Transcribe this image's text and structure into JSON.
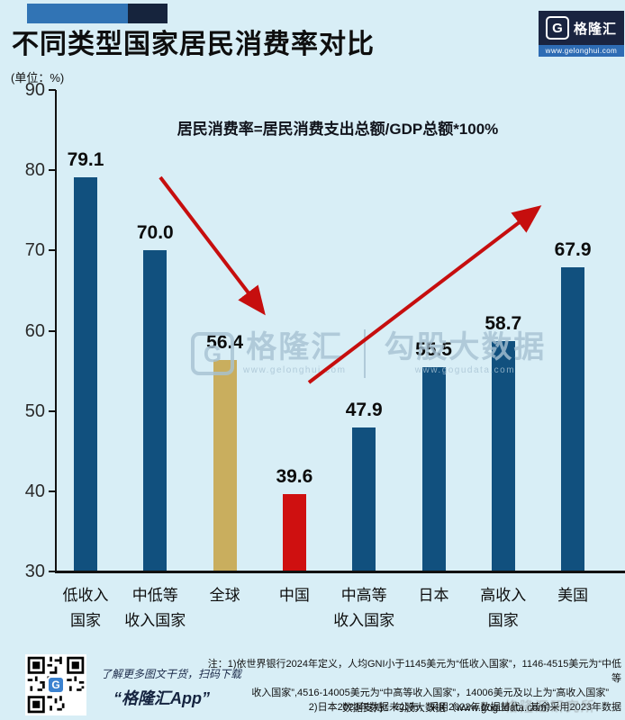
{
  "header": {
    "title": "不同类型国家居民消费率对比",
    "unit": "(单位：%)"
  },
  "logo": {
    "g": "G",
    "brand": "格隆汇",
    "url": "www.gelonghui.com"
  },
  "chart_data": {
    "type": "bar",
    "title": "不同类型国家居民消费率对比",
    "annotation": "居民消费率=居民消费支出总额/GDP总额*100%",
    "unit": "%",
    "ylim": [
      30,
      90
    ],
    "yticks": [
      90,
      80,
      70,
      60,
      50,
      40,
      30
    ],
    "grid": false,
    "categories": [
      [
        "低收入",
        "国家"
      ],
      [
        "中低等",
        "收入国家"
      ],
      [
        "全球"
      ],
      [
        "中国"
      ],
      [
        "中高等",
        "收入国家"
      ],
      [
        "日本"
      ],
      [
        "高收入",
        "国家"
      ],
      [
        "美国"
      ]
    ],
    "values": [
      79.1,
      70.0,
      56.4,
      39.6,
      47.9,
      55.5,
      58.7,
      67.9
    ],
    "value_labels": [
      "79.1",
      "70.0",
      "56.4",
      "39.6",
      "47.9",
      "55.5",
      "58.7",
      "67.9"
    ],
    "bar_default_color": "#11507e",
    "bar_colors": {
      "2": "#c9ae5e",
      "3": "#cf1010"
    },
    "arrow_color": "#c60e0e",
    "trend_arrows": [
      {
        "name": "down-trend-arrow",
        "from": [
          178,
          197
        ],
        "to": [
          290,
          344
        ]
      },
      {
        "name": "up-trend-arrow",
        "from": [
          343,
          425
        ],
        "to": [
          595,
          233
        ]
      }
    ]
  },
  "watermark_center": {
    "g": "G",
    "brand": "格隆汇",
    "brand_url": "www.gelonghui.com",
    "partner": "勾股大数据",
    "partner_url": "www.gogudata.com"
  },
  "footer": {
    "promo_line1": "了解更多图文干货，扫码下载",
    "promo_line2": "“格隆汇App”",
    "note_line1": "注：1)依世界银行2024年定义，人均GNI小于1145美元为“低收入国家”，1146-4515美元为“中低等",
    "note_line2": "收入国家”,4516-14005美元为“中高等收入国家”，14006美元及以上为“高收入国家”",
    "note_line3": "2)日本2023年数据未公布，采用2022年数据替代，其余采用2023年数据",
    "data_support": "数据支持：勾股大数据（www.gogudata.com）",
    "overlay_watermark": "格隆汇研究所"
  }
}
